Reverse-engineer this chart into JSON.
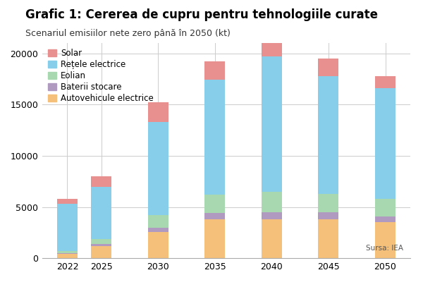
{
  "title": "Grafic 1: Cererea de cupru pentru tehnologiile curate",
  "subtitle": "Scenariul emisiilor nete zero până în 2050 (kt)",
  "source": "Sursa: IEA",
  "years": [
    2022,
    2025,
    2030,
    2035,
    2040,
    2045,
    2050
  ],
  "categories": [
    "Autovehicule electrice",
    "Baterii stocare",
    "Eolian",
    "Rețele electrice",
    "Solar"
  ],
  "colors": [
    "#F5C07A",
    "#B09AC0",
    "#A8D8B0",
    "#87CEEB",
    "#E89090"
  ],
  "data": {
    "Autovehicule electrice": [
      400,
      1200,
      2600,
      3800,
      3800,
      3800,
      3500
    ],
    "Baterii stocare": [
      100,
      200,
      400,
      600,
      700,
      700,
      600
    ],
    "Eolian": [
      200,
      500,
      1200,
      1800,
      2000,
      1800,
      1700
    ],
    "Rețele electrice": [
      4600,
      5100,
      9100,
      11200,
      13200,
      11500,
      10800
    ],
    "Solar": [
      500,
      1000,
      1900,
      1800,
      2300,
      1700,
      1200
    ]
  },
  "ylim": [
    0,
    21000
  ],
  "yticks": [
    0,
    5000,
    10000,
    15000,
    20000
  ],
  "background_color": "#ffffff",
  "grid_color": "#cccccc",
  "bar_width": 1.8,
  "title_fontsize": 12,
  "subtitle_fontsize": 9,
  "tick_fontsize": 9,
  "legend_fontsize": 8.5
}
